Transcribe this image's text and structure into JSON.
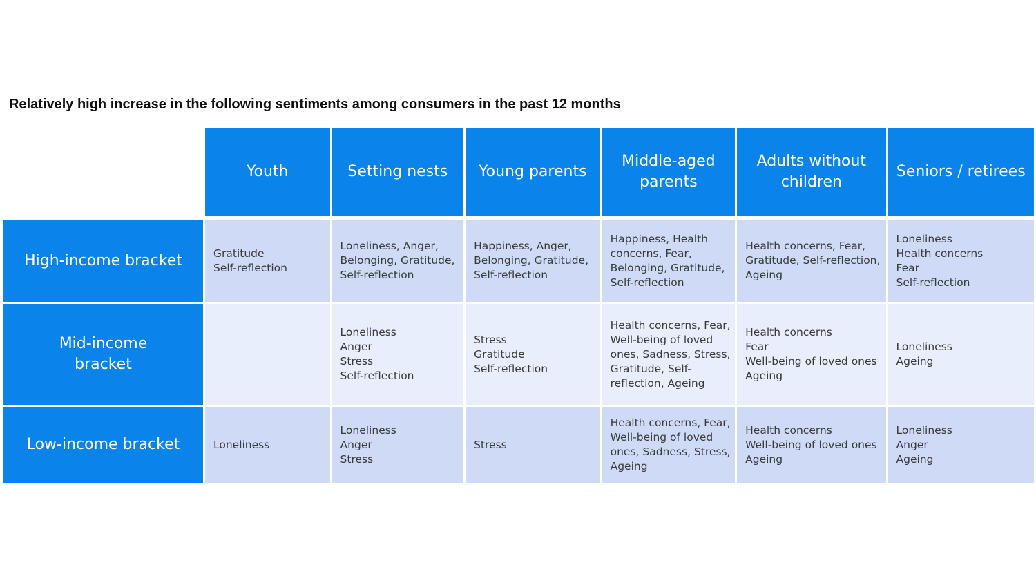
{
  "title": "Relatively high increase in the following sentiments among consumers in the past 12 months",
  "columns": [
    "Youth",
    "Setting nests",
    "Young parents",
    "Middle-aged\nparents",
    "Adults without\nchildren",
    "Seniors / retirees"
  ],
  "rows": [
    {
      "label": "High-income bracket",
      "cells": [
        "Gratitude\nSelf-reflection",
        "Loneliness, Anger,\nBelonging, Gratitude,\nSelf-reflection",
        "Happiness, Anger,\nBelonging, Gratitude,\nSelf-reflection",
        "Happiness, Health\nconcerns, Fear,\nBelonging, Gratitude,\nSelf-reflection",
        "Health concerns, Fear,\nGratitude, Self-reflection,\nAgeing",
        "Loneliness\nHealth concerns\nFear\nSelf-reflection"
      ]
    },
    {
      "label": "Mid-income\nbracket",
      "cells": [
        "",
        "Loneliness\nAnger\nStress\nSelf-reflection",
        "Stress\nGratitude\nSelf-reflection",
        "Health concerns, Fear,\nWell-being of loved\nones, Sadness, Stress,\nGratitude, Self-\nreflection, Ageing",
        "Health concerns\nFear\nWell-being of loved ones\nAgeing",
        "Loneliness\nAgeing"
      ]
    },
    {
      "label": "Low-income bracket",
      "cells": [
        "Loneliness",
        "Loneliness\nAnger\nStress",
        "Stress",
        "Health concerns, Fear,\nWell-being of loved\nones, Sadness, Stress,\nAgeing",
        "Health concerns\nWell-being of loved ones\nAgeing",
        "Loneliness\nAnger\nAgeing"
      ]
    }
  ],
  "colors": {
    "header_blue": "#0a84eb",
    "cell_dark": "#cfdaf7",
    "cell_light": "#e8eefb"
  }
}
